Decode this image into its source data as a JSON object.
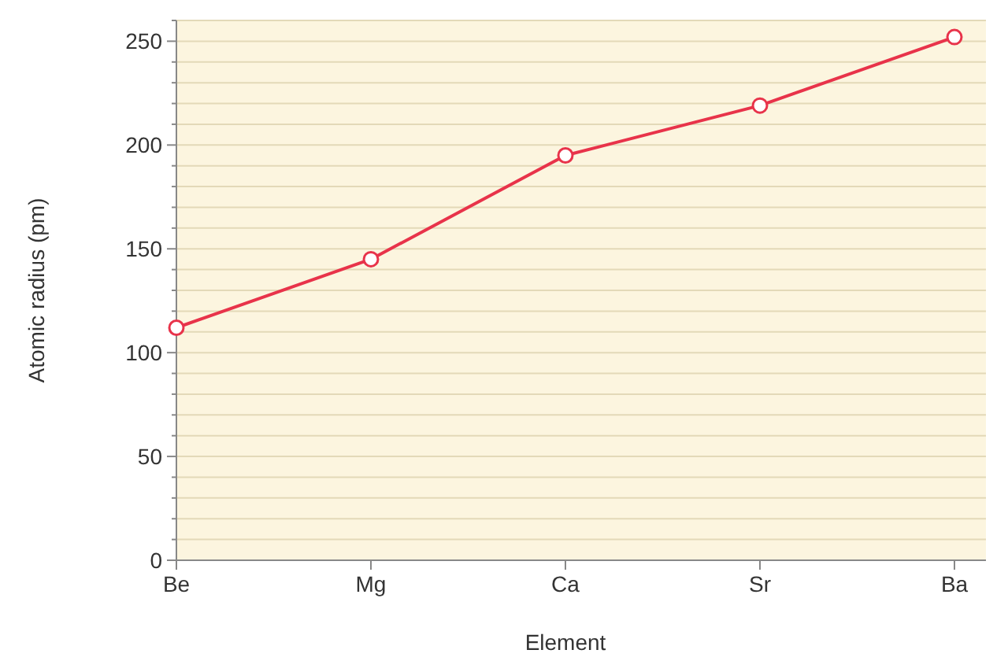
{
  "chart_data": {
    "type": "line",
    "xlabel": "Element",
    "ylabel": "Atomic radius (pm)",
    "categories": [
      "Be",
      "Mg",
      "Ca",
      "Sr",
      "Ba"
    ],
    "series": [
      {
        "color": "#e8334a",
        "values": [
          112,
          145,
          195,
          219,
          252
        ]
      }
    ],
    "ylim": [
      0,
      260
    ],
    "yticks": [
      0,
      {
        "value": 10,
        "label": null
      },
      {
        "value": 20,
        "label": null
      },
      {
        "value": 30,
        "label": null
      },
      {
        "value": 40,
        "label": null
      },
      50,
      {
        "value": 60,
        "label": null
      },
      {
        "value": 70,
        "label": null
      },
      {
        "value": 80,
        "label": null
      },
      {
        "value": 90,
        "label": null
      },
      100,
      {
        "value": 110,
        "label": null
      },
      {
        "value": 120,
        "label": null
      },
      {
        "value": 130,
        "label": null
      },
      {
        "value": 140,
        "label": null
      },
      150,
      {
        "value": 160,
        "label": null
      },
      {
        "value": 170,
        "label": null
      },
      {
        "value": 180,
        "label": null
      },
      {
        "value": 190,
        "label": null
      },
      200,
      {
        "value": 210,
        "label": null
      },
      {
        "value": 220,
        "label": null
      },
      {
        "value": 230,
        "label": null
      },
      {
        "value": 240,
        "label": null
      },
      250,
      {
        "value": 260,
        "label": null
      }
    ],
    "grid": "y",
    "marker": "circle",
    "line_style": "solid"
  }
}
